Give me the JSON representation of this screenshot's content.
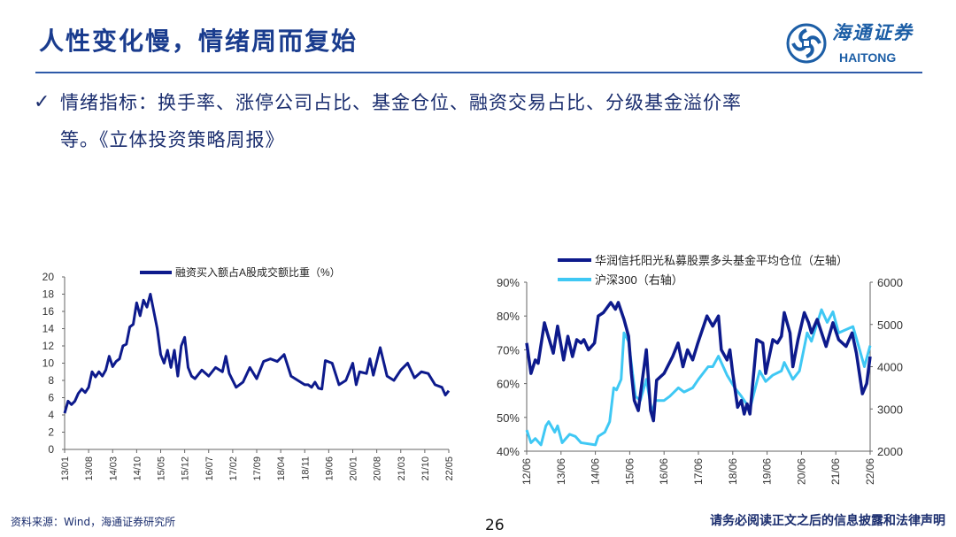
{
  "header": {
    "title": "人性变化慢，情绪周而复始",
    "logo_cn": "海通证券",
    "logo_en": "HAITONG"
  },
  "bullet": {
    "icon": "checkmark-icon",
    "line1": "情绪指标：换手率、涨停公司占比、基金仓位、融资交易占比、分级基金溢价率",
    "line2": "等。《立体投资策略周报》"
  },
  "footer": {
    "source": "资料来源：Wind，海通证券研究所",
    "page_number": "26",
    "disclaimer": "请务必阅读正文之后的信息披露和法律声明"
  },
  "colors": {
    "title": "#1a3c8e",
    "navy": "#0d1a8c",
    "cyan": "#3fc8f4"
  },
  "chart_data": [
    {
      "type": "line",
      "title": "",
      "legend": [
        "融资买入额占A股成交额比重（%）"
      ],
      "legend_position": "top-center",
      "ylim": [
        0,
        20
      ],
      "yticks": [
        "0",
        "2",
        "4",
        "6",
        "8",
        "10",
        "12",
        "14",
        "16",
        "18",
        "20"
      ],
      "xlabel": "",
      "ylabel": "",
      "xticks": [
        "13/01",
        "13/08",
        "14/03",
        "14/10",
        "15/05",
        "15/12",
        "16/07",
        "17/02",
        "17/09",
        "18/04",
        "18/11",
        "19/06",
        "20/01",
        "20/08",
        "21/03",
        "21/10",
        "22/05"
      ],
      "x_unit": "months since 2013-01",
      "x_range": [
        0,
        112
      ],
      "series": [
        {
          "name": "融资买入额占A股成交额比重（%）",
          "color": "#0d1a8c",
          "x": [
            0,
            1,
            2,
            3,
            4,
            5,
            6,
            7,
            8,
            9,
            10,
            11,
            12,
            13,
            14,
            15,
            16,
            17,
            18,
            19,
            20,
            21,
            22,
            23,
            24,
            25,
            26,
            27,
            28,
            29,
            30,
            31,
            32,
            33,
            34,
            35,
            36,
            37,
            38,
            39,
            40,
            42,
            44,
            46,
            47,
            48,
            50,
            52,
            54,
            56,
            58,
            60,
            62,
            64,
            66,
            68,
            70,
            71,
            72,
            73,
            74,
            75,
            76,
            78,
            80,
            82,
            84,
            85,
            86,
            88,
            89,
            90,
            92,
            94,
            96,
            98,
            100,
            102,
            104,
            106,
            108,
            110,
            111,
            112
          ],
          "values": [
            4.2,
            5.6,
            5.2,
            5.6,
            6.5,
            7,
            6.6,
            7.2,
            9,
            8.4,
            9,
            8.5,
            9.2,
            10.8,
            9.6,
            10.2,
            10.5,
            12,
            12.2,
            14.2,
            14.5,
            17,
            15.5,
            17.3,
            16.5,
            18,
            16,
            14,
            11,
            10,
            11.5,
            9.5,
            11.5,
            8.5,
            12,
            13,
            9.5,
            8.5,
            8.2,
            8.7,
            9.2,
            8.5,
            9.5,
            9,
            10.8,
            8.8,
            7.2,
            7.8,
            9.5,
            8.2,
            10.2,
            10.5,
            10.2,
            11,
            8.5,
            8,
            7.5,
            7.5,
            7.2,
            7.8,
            7.1,
            7,
            10.3,
            10,
            7.5,
            8,
            10,
            7.5,
            9,
            8.8,
            10.5,
            8.6,
            11.8,
            8.5,
            8,
            9.2,
            10,
            8.3,
            9,
            8.8,
            7.5,
            7.2,
            6.3,
            6.8
          ]
        }
      ]
    },
    {
      "type": "line",
      "title": "",
      "legend": [
        "华润信托阳光私募股票多头基金平均仓位（左轴）",
        "沪深300（右轴）"
      ],
      "legend_position": "top-left",
      "ylim_left": [
        40,
        90
      ],
      "ylim_right": [
        2000,
        6000
      ],
      "yticks_left": [
        "40%",
        "50%",
        "60%",
        "70%",
        "80%",
        "90%"
      ],
      "yticks_right": [
        "2000",
        "3000",
        "4000",
        "5000",
        "6000"
      ],
      "xticks": [
        "12/06",
        "13/06",
        "14/06",
        "15/06",
        "16/06",
        "17/06",
        "18/06",
        "19/06",
        "20/06",
        "21/06",
        "22/06"
      ],
      "x_unit": "months since 2012-06",
      "x_range": [
        0,
        120
      ],
      "series": [
        {
          "name": "华润信托阳光私募股票多头基金平均仓位（左轴）",
          "axis": "left",
          "color": "#0d1a8c",
          "x": [
            0,
            1.5,
            3,
            4,
            6.2,
            7.2,
            9.3,
            10.8,
            12.9,
            14.4,
            16,
            17.5,
            19,
            20,
            21.6,
            23.7,
            25,
            26.8,
            29.4,
            31,
            32,
            34,
            35.6,
            36.6,
            37.6,
            39,
            41.8,
            43.3,
            44.3,
            45.4,
            48,
            51,
            52.9,
            54.6,
            56.2,
            58,
            59.8,
            63,
            65,
            67,
            68,
            70,
            71,
            72,
            73.7,
            75,
            76,
            77,
            78,
            80.4,
            82.5,
            83.5,
            86,
            87.6,
            89,
            90,
            92,
            93,
            94.8,
            97,
            98.5,
            99.5,
            101.5,
            104.6,
            107,
            109,
            111.6,
            113.7,
            115.2,
            117.3,
            118.8,
            120
          ],
          "values": [
            72,
            63,
            67,
            66,
            78,
            75,
            69,
            77,
            67,
            74,
            68,
            73,
            72,
            73,
            70,
            72,
            80,
            81,
            84,
            82,
            84,
            79,
            74,
            63,
            55,
            52,
            70,
            52,
            49,
            61,
            63,
            68,
            72,
            65,
            70,
            67,
            72,
            80,
            77,
            80,
            70,
            67,
            70,
            63,
            53,
            55,
            51,
            54,
            51,
            73,
            72,
            63,
            73,
            72,
            74,
            81,
            75,
            65,
            73,
            81,
            78,
            75,
            79,
            71,
            78,
            73,
            71,
            75,
            69,
            57,
            60,
            68
          ]
        },
        {
          "name": "沪深300（右轴）",
          "axis": "right",
          "color": "#3fc8f4",
          "x": [
            0,
            1.5,
            3,
            5,
            6.7,
            7.7,
            9.8,
            10.8,
            12.4,
            15,
            17,
            19,
            24,
            25,
            27.3,
            29,
            30.4,
            31.4,
            33,
            34,
            35.6,
            38,
            39.7,
            41.8,
            43.8,
            45,
            48,
            50,
            53,
            55,
            58,
            60,
            63.4,
            65,
            67,
            70,
            72.7,
            75,
            78,
            81.4,
            83.5,
            86,
            89,
            90,
            93,
            95.3,
            98,
            99.5,
            103,
            105,
            107,
            109,
            114,
            115.5,
            118,
            120
          ],
          "values": [
            2500,
            2200,
            2300,
            2150,
            2600,
            2700,
            2450,
            2600,
            2200,
            2400,
            2350,
            2200,
            2150,
            2350,
            2450,
            2700,
            3500,
            3450,
            3700,
            4800,
            4600,
            3300,
            3200,
            3700,
            2900,
            3200,
            3200,
            3300,
            3500,
            3400,
            3500,
            3700,
            4000,
            4000,
            4250,
            3800,
            3500,
            3300,
            3000,
            3900,
            3650,
            3800,
            3900,
            4100,
            3700,
            3900,
            4800,
            4600,
            5350,
            5050,
            5300,
            4800,
            4950,
            4600,
            4000,
            4500
          ]
        }
      ]
    }
  ]
}
